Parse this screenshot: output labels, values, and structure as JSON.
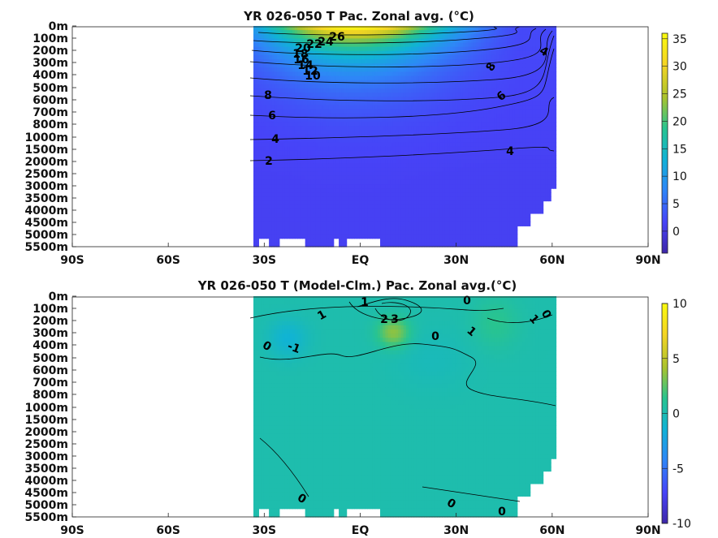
{
  "chart_data": [
    {
      "type": "heatmap",
      "title": "YR 026-050 T Pac. Zonal avg.",
      "title_unit": "(°C)",
      "x_ticks": [
        "90S",
        "60S",
        "30S",
        "EQ",
        "30N",
        "60N",
        "90N"
      ],
      "x_range": [
        -90,
        90
      ],
      "y_ticks": [
        "0m",
        "100m",
        "200m",
        "300m",
        "400m",
        "500m",
        "600m",
        "700m",
        "800m",
        "1000m",
        "1500m",
        "2000m",
        "2500m",
        "3000m",
        "3500m",
        "4000m",
        "4500m",
        "5000m",
        "5500m"
      ],
      "colorbar": {
        "min": -4,
        "max": 36,
        "ticks": [
          35,
          30,
          25,
          20,
          15,
          10,
          5,
          0
        ]
      },
      "contour_labels": [
        "26",
        "24",
        "22",
        "20",
        "18",
        "16",
        "14",
        "12",
        "10",
        "8",
        "6",
        "4",
        "2",
        "8",
        "6",
        "4",
        "4",
        "2"
      ],
      "surface_max": 29,
      "deep_value": 1.5,
      "colormap": [
        "#3e26a8",
        "#4743f8",
        "#2e87f7",
        "#10b3d5",
        "#29c48e",
        "#abc32c",
        "#f5d523",
        "#f9fb0e"
      ]
    },
    {
      "type": "heatmap",
      "title": "YR 026-050 T (Model-Clm.) Pac. Zonal avg.",
      "title_unit": "(°C)",
      "x_ticks": [
        "90S",
        "60S",
        "30S",
        "EQ",
        "30N",
        "60N",
        "90N"
      ],
      "x_range": [
        -90,
        90
      ],
      "y_ticks": [
        "0m",
        "100m",
        "200m",
        "300m",
        "400m",
        "500m",
        "600m",
        "700m",
        "800m",
        "1000m",
        "1500m",
        "2000m",
        "2500m",
        "3000m",
        "3500m",
        "4000m",
        "4500m",
        "5000m",
        "5500m"
      ],
      "colorbar": {
        "min": -10,
        "max": 10,
        "ticks": [
          10,
          5,
          0,
          -5,
          -10
        ]
      },
      "contour_labels": [
        "1",
        "0",
        "1",
        "-1",
        "0",
        "0",
        "1",
        "0",
        "1",
        "3",
        "2",
        "0",
        "0",
        "0"
      ],
      "colormap": [
        "#3e26a8",
        "#4743f8",
        "#2e87f7",
        "#10b3d5",
        "#29c48e",
        "#abc32c",
        "#f5d523",
        "#f9fb0e"
      ]
    }
  ]
}
